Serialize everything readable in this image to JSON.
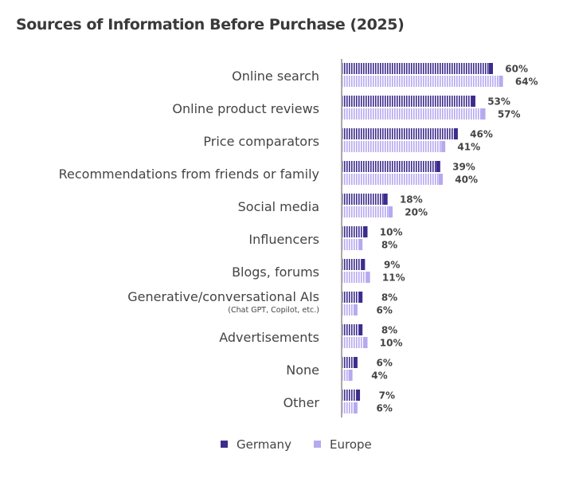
{
  "chart_data": {
    "type": "bar",
    "orientation": "horizontal",
    "title": "Sources of Information Before Purchase (2025)",
    "categories": [
      "Online search",
      "Online product reviews",
      "Price comparators",
      "Recommendations from friends or family",
      "Social media",
      "Influencers",
      "Blogs, forums",
      "Generative/conversational AIs",
      "Advertisements",
      "None",
      "Other"
    ],
    "category_notes": [
      "",
      "",
      "",
      "",
      "",
      "",
      "",
      "(Chat GPT, Copilot, etc.)",
      "",
      "",
      ""
    ],
    "series": [
      {
        "name": "Germany",
        "color": "#3d2c8d",
        "values": [
          60,
          53,
          46,
          39,
          18,
          10,
          9,
          8,
          8,
          6,
          7
        ]
      },
      {
        "name": "Europe",
        "color": "#b7a9f0",
        "values": [
          64,
          57,
          41,
          40,
          20,
          8,
          11,
          6,
          10,
          4,
          6
        ]
      }
    ],
    "value_suffix": "%",
    "xlim": [
      0,
      70
    ],
    "grid": false,
    "legend": "bottom"
  }
}
